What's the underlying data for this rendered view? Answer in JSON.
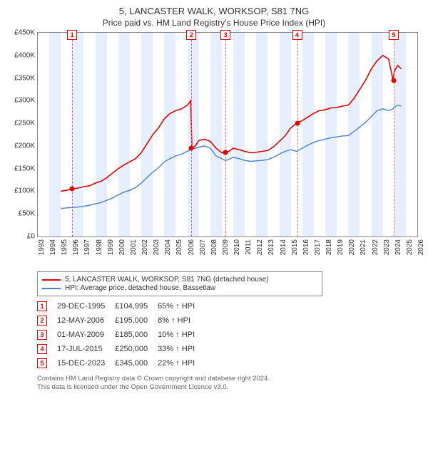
{
  "title": "5, LANCASTER WALK, WORKSOP, S81 7NG",
  "subtitle": "Price paid vs. HM Land Registry's House Price Index (HPI)",
  "chart": {
    "type": "line",
    "background_color": "#ffffff",
    "border_color": "#888888",
    "xlim": [
      1993,
      2026
    ],
    "ylim": [
      0,
      450000
    ],
    "ytick_step": 50000,
    "ytick_labels": [
      "£0",
      "£50K",
      "£100K",
      "£150K",
      "£200K",
      "£250K",
      "£300K",
      "£350K",
      "£400K",
      "£450K"
    ],
    "xtick_step": 1,
    "xtick_labels": [
      "1993",
      "1994",
      "1995",
      "1996",
      "1997",
      "1998",
      "1999",
      "2000",
      "2001",
      "2002",
      "2003",
      "2004",
      "2005",
      "2006",
      "2007",
      "2008",
      "2009",
      "2010",
      "2011",
      "2012",
      "2013",
      "2014",
      "2015",
      "2016",
      "2017",
      "2018",
      "2019",
      "2020",
      "2021",
      "2022",
      "2023",
      "2024",
      "2025",
      "2026"
    ],
    "vband_color": "#e6efff",
    "vline_color": "#d96f6f",
    "marker_border_color": "#e00000",
    "series": [
      {
        "name": "property",
        "color": "#e00000",
        "width": 1.6,
        "label": "5, LANCASTER WALK, WORKSOP, S81 7NG (detached house)",
        "points": [
          [
            1995.0,
            100000
          ],
          [
            1995.5,
            102000
          ],
          [
            1996.0,
            104995
          ],
          [
            1996.5,
            107000
          ],
          [
            1997.0,
            110000
          ],
          [
            1997.5,
            112000
          ],
          [
            1998.0,
            118000
          ],
          [
            1998.5,
            122000
          ],
          [
            1999.0,
            130000
          ],
          [
            1999.5,
            140000
          ],
          [
            2000.0,
            150000
          ],
          [
            2000.5,
            158000
          ],
          [
            2001.0,
            165000
          ],
          [
            2001.5,
            172000
          ],
          [
            2002.0,
            185000
          ],
          [
            2002.5,
            205000
          ],
          [
            2003.0,
            225000
          ],
          [
            2003.5,
            240000
          ],
          [
            2004.0,
            260000
          ],
          [
            2004.5,
            272000
          ],
          [
            2005.0,
            278000
          ],
          [
            2005.5,
            282000
          ],
          [
            2006.0,
            290000
          ],
          [
            2006.3,
            300000
          ],
          [
            2006.4,
            195000
          ],
          [
            2006.7,
            200000
          ],
          [
            2007.0,
            212000
          ],
          [
            2007.5,
            215000
          ],
          [
            2008.0,
            210000
          ],
          [
            2008.5,
            195000
          ],
          [
            2009.0,
            185000
          ],
          [
            2009.3,
            185000
          ],
          [
            2009.6,
            188000
          ],
          [
            2010.0,
            195000
          ],
          [
            2010.5,
            192000
          ],
          [
            2011.0,
            188000
          ],
          [
            2011.5,
            185000
          ],
          [
            2012.0,
            186000
          ],
          [
            2012.5,
            188000
          ],
          [
            2013.0,
            190000
          ],
          [
            2013.5,
            198000
          ],
          [
            2014.0,
            210000
          ],
          [
            2014.5,
            222000
          ],
          [
            2015.0,
            240000
          ],
          [
            2015.5,
            250000
          ],
          [
            2016.0,
            256000
          ],
          [
            2016.5,
            264000
          ],
          [
            2017.0,
            272000
          ],
          [
            2017.5,
            278000
          ],
          [
            2018.0,
            280000
          ],
          [
            2018.5,
            284000
          ],
          [
            2019.0,
            285000
          ],
          [
            2019.5,
            288000
          ],
          [
            2020.0,
            290000
          ],
          [
            2020.5,
            305000
          ],
          [
            2021.0,
            325000
          ],
          [
            2021.5,
            345000
          ],
          [
            2022.0,
            370000
          ],
          [
            2022.5,
            388000
          ],
          [
            2023.0,
            400000
          ],
          [
            2023.5,
            392000
          ],
          [
            2023.9,
            345000
          ],
          [
            2024.0,
            365000
          ],
          [
            2024.3,
            378000
          ],
          [
            2024.6,
            370000
          ]
        ]
      },
      {
        "name": "hpi",
        "color": "#4a7fd6",
        "width": 1.4,
        "label": "HPI: Average price, detached house, Bassetlaw",
        "points": [
          [
            1995.0,
            62000
          ],
          [
            1995.5,
            63000
          ],
          [
            1996.0,
            64000
          ],
          [
            1996.5,
            65000
          ],
          [
            1997.0,
            67000
          ],
          [
            1997.5,
            69000
          ],
          [
            1998.0,
            72000
          ],
          [
            1998.5,
            75000
          ],
          [
            1999.0,
            80000
          ],
          [
            1999.5,
            85000
          ],
          [
            2000.0,
            92000
          ],
          [
            2000.5,
            98000
          ],
          [
            2001.0,
            102000
          ],
          [
            2001.5,
            108000
          ],
          [
            2002.0,
            118000
          ],
          [
            2002.5,
            130000
          ],
          [
            2003.0,
            142000
          ],
          [
            2003.5,
            152000
          ],
          [
            2004.0,
            165000
          ],
          [
            2004.5,
            172000
          ],
          [
            2005.0,
            178000
          ],
          [
            2005.5,
            182000
          ],
          [
            2006.0,
            188000
          ],
          [
            2006.4,
            193000
          ],
          [
            2007.0,
            197000
          ],
          [
            2007.5,
            200000
          ],
          [
            2008.0,
            195000
          ],
          [
            2008.5,
            178000
          ],
          [
            2009.0,
            172000
          ],
          [
            2009.3,
            168000
          ],
          [
            2009.6,
            170000
          ],
          [
            2010.0,
            175000
          ],
          [
            2010.5,
            172000
          ],
          [
            2011.0,
            168000
          ],
          [
            2011.5,
            166000
          ],
          [
            2012.0,
            167000
          ],
          [
            2012.5,
            168000
          ],
          [
            2013.0,
            170000
          ],
          [
            2013.5,
            175000
          ],
          [
            2014.0,
            182000
          ],
          [
            2014.5,
            188000
          ],
          [
            2015.0,
            192000
          ],
          [
            2015.5,
            188000
          ],
          [
            2016.0,
            195000
          ],
          [
            2016.5,
            202000
          ],
          [
            2017.0,
            208000
          ],
          [
            2017.5,
            212000
          ],
          [
            2018.0,
            215000
          ],
          [
            2018.5,
            218000
          ],
          [
            2019.0,
            220000
          ],
          [
            2019.5,
            222000
          ],
          [
            2020.0,
            223000
          ],
          [
            2020.5,
            232000
          ],
          [
            2021.0,
            242000
          ],
          [
            2021.5,
            252000
          ],
          [
            2022.0,
            265000
          ],
          [
            2022.5,
            278000
          ],
          [
            2023.0,
            282000
          ],
          [
            2023.5,
            278000
          ],
          [
            2023.9,
            282000
          ],
          [
            2024.0,
            286000
          ],
          [
            2024.3,
            290000
          ],
          [
            2024.6,
            288000
          ]
        ]
      }
    ],
    "sales": [
      {
        "n": "1",
        "year": 1995.99,
        "price_y": 104995,
        "date": "29-DEC-1995",
        "price": "£104,995",
        "delta": "65% ↑ HPI"
      },
      {
        "n": "2",
        "year": 2006.36,
        "price_y": 195000,
        "date": "12-MAY-2006",
        "price": "£195,000",
        "delta": "8% ↑ HPI"
      },
      {
        "n": "3",
        "year": 2009.33,
        "price_y": 185000,
        "date": "01-MAY-2009",
        "price": "£185,000",
        "delta": "10% ↑ HPI"
      },
      {
        "n": "4",
        "year": 2015.55,
        "price_y": 250000,
        "date": "17-JUL-2015",
        "price": "£250,000",
        "delta": "33% ↑ HPI"
      },
      {
        "n": "5",
        "year": 2023.96,
        "price_y": 345000,
        "date": "15-DEC-2023",
        "price": "£345,000",
        "delta": "22% ↑ HPI"
      }
    ]
  },
  "footer_line1": "Contains HM Land Registry data © Crown copyright and database right 2024.",
  "footer_line2": "This data is licensed under the Open Government Licence v3.0."
}
